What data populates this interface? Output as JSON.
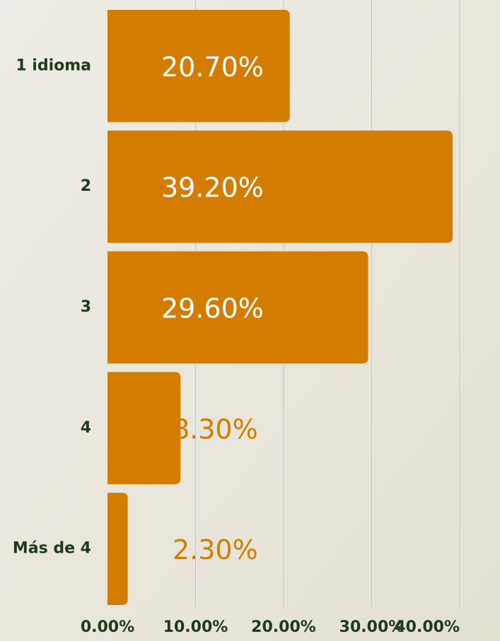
{
  "chart_data": {
    "type": "bar",
    "orientation": "horizontal",
    "categories": [
      "1 idioma",
      "2",
      "3",
      "4",
      "Más de 4"
    ],
    "values": [
      20.7,
      39.2,
      29.6,
      8.3,
      2.3
    ],
    "value_labels": [
      "20.70%",
      "39.20%",
      "29.60%",
      "8.30%",
      "2.30%"
    ],
    "color": "#d47c00",
    "xlim": [
      0,
      40
    ],
    "xticks": [
      {
        "value": 0,
        "label": "0.00%"
      },
      {
        "value": 10,
        "label": "10.00%"
      },
      {
        "value": 20,
        "label": "20.00%"
      },
      {
        "value": 30,
        "label": "30.00%"
      },
      {
        "value": 40,
        "label": "40.00%"
      }
    ],
    "grid": true
  }
}
